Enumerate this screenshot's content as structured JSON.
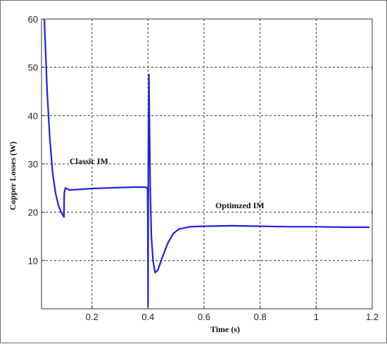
{
  "chart_data": {
    "type": "line",
    "title": "",
    "xlabel": "Time (s)",
    "ylabel": "Copper Losses (W)",
    "xlim": [
      0.02,
      1.2
    ],
    "ylim": [
      0,
      60
    ],
    "grid": true,
    "x_ticks": [
      0.2,
      0.4,
      0.6,
      0.8,
      1.0,
      1.2
    ],
    "x_tick_labels": [
      "0.2",
      "0.4",
      "0.6",
      "0.8",
      "1",
      "1.2"
    ],
    "y_ticks": [
      10,
      20,
      30,
      40,
      50,
      60
    ],
    "y_tick_labels": [
      "10",
      "20",
      "30",
      "40",
      "50",
      "60"
    ],
    "line_color": "#2020e0",
    "annotations": [
      {
        "text": "Classic IM",
        "x": 0.12,
        "y": 30
      },
      {
        "text": "Optimzed IM",
        "x": 0.64,
        "y": 20.8
      }
    ],
    "series": [
      {
        "points": [
          [
            0.03,
            60
          ],
          [
            0.04,
            45
          ],
          [
            0.05,
            35
          ],
          [
            0.06,
            28
          ],
          [
            0.07,
            24
          ],
          [
            0.08,
            21.5
          ],
          [
            0.09,
            20
          ],
          [
            0.1,
            19
          ],
          [
            0.101,
            24
          ],
          [
            0.105,
            25
          ],
          [
            0.12,
            24.6
          ],
          [
            0.15,
            24.7
          ],
          [
            0.2,
            24.9
          ],
          [
            0.25,
            25
          ],
          [
            0.3,
            25.1
          ],
          [
            0.35,
            25.2
          ],
          [
            0.39,
            25.2
          ],
          [
            0.398,
            25
          ],
          [
            0.399,
            20
          ],
          [
            0.4,
            0.5
          ],
          [
            0.401,
            30
          ],
          [
            0.403,
            48.5
          ],
          [
            0.405,
            40
          ],
          [
            0.408,
            25
          ],
          [
            0.412,
            15
          ],
          [
            0.418,
            10
          ],
          [
            0.425,
            7.5
          ],
          [
            0.435,
            8
          ],
          [
            0.45,
            10.5
          ],
          [
            0.47,
            13.5
          ],
          [
            0.49,
            15.6
          ],
          [
            0.51,
            16.5
          ],
          [
            0.55,
            17
          ],
          [
            0.6,
            17.1
          ],
          [
            0.7,
            17.2
          ],
          [
            0.8,
            17.1
          ],
          [
            0.9,
            17
          ],
          [
            1.0,
            17
          ],
          [
            1.1,
            16.9
          ],
          [
            1.19,
            16.9
          ]
        ]
      }
    ]
  }
}
